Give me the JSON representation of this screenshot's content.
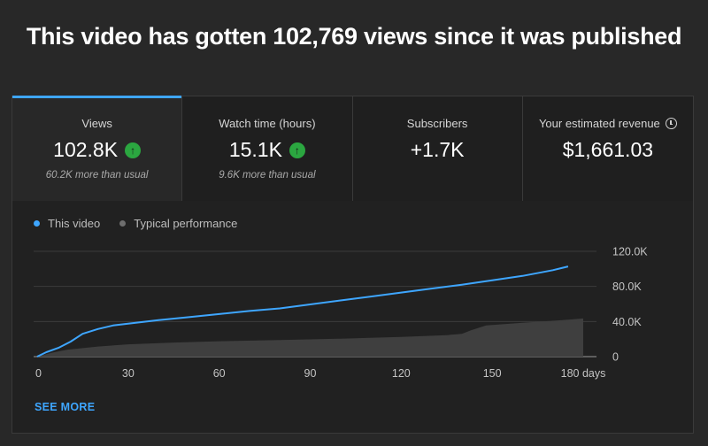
{
  "headline": "This video has gotten 102,769 views since it was published",
  "tabs": [
    {
      "label": "Views",
      "value": "102.8K",
      "sub": "60.2K more than usual",
      "trend": "up",
      "active": true
    },
    {
      "label": "Watch time (hours)",
      "value": "15.1K",
      "sub": "9.6K more than usual",
      "trend": "up",
      "active": false
    },
    {
      "label": "Subscribers",
      "value": "+1.7K",
      "sub": "",
      "trend": "",
      "active": false
    },
    {
      "label": "Your estimated revenue",
      "value": "$1,661.03",
      "sub": "",
      "trend": "",
      "active": false,
      "info_icon": "clock-icon"
    }
  ],
  "legend": {
    "this_video": "This video",
    "typical": "Typical performance"
  },
  "see_more_label": "SEE MORE",
  "colors": {
    "accent": "#3ea6ff",
    "typical_fill": "#3f3f3f",
    "trend_up": "#2ba640"
  },
  "chart_data": {
    "type": "line",
    "x_ticks": [
      "0",
      "30",
      "60",
      "90",
      "120",
      "150",
      "180 days"
    ],
    "x_tick_values": [
      0,
      30,
      60,
      90,
      120,
      150,
      180
    ],
    "y_ticks": [
      "0",
      "40.0K",
      "80.0K",
      "120.0K"
    ],
    "y_tick_values": [
      0,
      40000,
      80000,
      120000
    ],
    "xlim": [
      0,
      180
    ],
    "ylim": [
      0,
      120000
    ],
    "grid": true,
    "series": [
      {
        "name": "This video",
        "style": "line",
        "x": [
          0,
          3,
          7,
          11,
          15,
          20,
          25,
          30,
          40,
          50,
          60,
          70,
          80,
          90,
          100,
          110,
          120,
          130,
          140,
          150,
          160,
          170,
          175
        ],
        "y": [
          0,
          5000,
          10000,
          17000,
          26000,
          31500,
          35500,
          37500,
          41500,
          45000,
          48500,
          52000,
          55000,
          59500,
          64000,
          68500,
          73000,
          77500,
          82000,
          87000,
          92000,
          98500,
          102769
        ]
      },
      {
        "name": "Typical performance",
        "style": "area",
        "x": [
          0,
          5,
          10,
          20,
          30,
          45,
          60,
          80,
          100,
          120,
          135,
          140,
          143,
          148,
          160,
          175,
          180
        ],
        "y": [
          0,
          4500,
          8000,
          11500,
          14000,
          16000,
          17500,
          19000,
          20500,
          22500,
          24500,
          26000,
          30000,
          35500,
          38500,
          42000,
          43500
        ]
      }
    ]
  }
}
